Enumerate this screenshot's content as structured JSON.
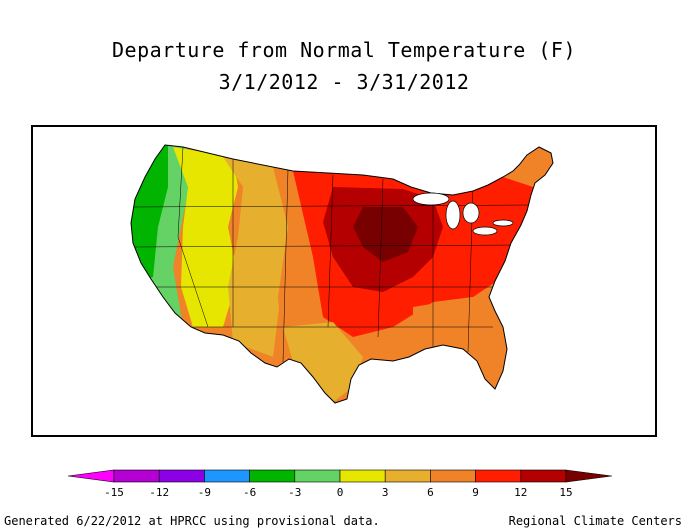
{
  "title": "Departure from Normal Temperature (F)",
  "subtitle": "3/1/2012 - 3/31/2012",
  "legend": {
    "colors": [
      "#ff00ff",
      "#b400d2",
      "#8c00e6",
      "#1e96ff",
      "#00b400",
      "#64d264",
      "#e6e600",
      "#e6af2d",
      "#f08228",
      "#ff1e00",
      "#b40000",
      "#780000"
    ],
    "tick_labels": [
      "-15",
      "-12",
      "-9",
      "-6",
      "-3",
      "0",
      "3",
      "6",
      "9",
      "12",
      "15"
    ]
  },
  "footer_left": "Generated 6/22/2012 at HPRCC using provisional data.",
  "footer_right": "Regional Climate Centers"
}
